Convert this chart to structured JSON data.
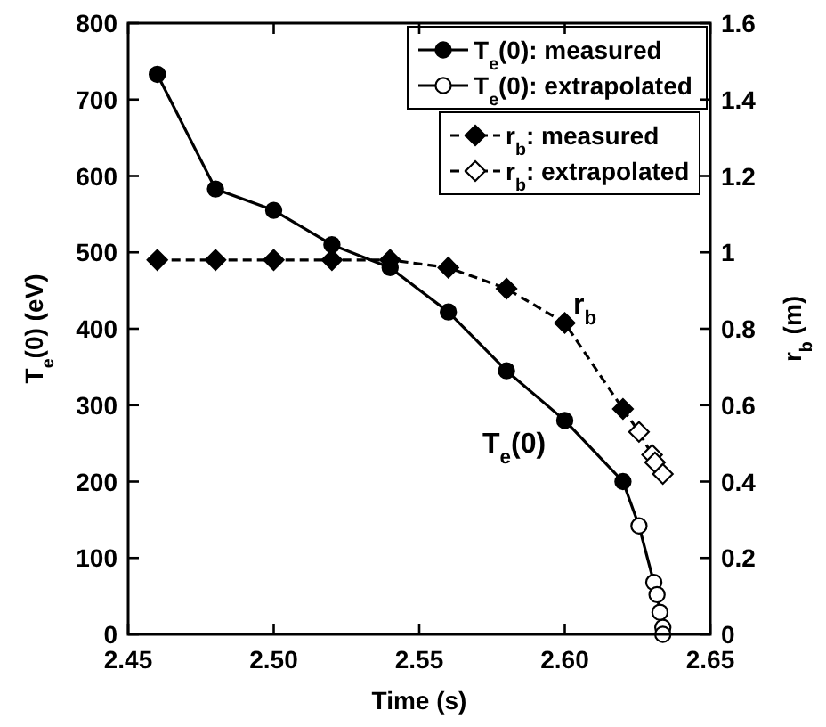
{
  "chart_data": {
    "type": "line",
    "xlabel": "Time (s)",
    "ylabel": "T$_{e}$(0) (eV)",
    "y2label": "r$_{b}$ (m)",
    "xlim": [
      2.45,
      2.65
    ],
    "xticks": [
      {
        "value": 2.45,
        "label": "2.45"
      },
      {
        "value": 2.5,
        "label": "2.50"
      },
      {
        "value": 2.55,
        "label": "2.55"
      },
      {
        "value": 2.6,
        "label": "2.60"
      },
      {
        "value": 2.65,
        "label": "2.65"
      }
    ],
    "ylim": [
      0,
      800
    ],
    "yticks": [
      0,
      100,
      200,
      300,
      400,
      500,
      600,
      700,
      800
    ],
    "y2lim": [
      0,
      1.6
    ],
    "y2ticks": [
      0,
      0.2,
      0.4,
      0.6,
      0.8,
      1,
      1.2,
      1.4,
      1.6
    ],
    "legend": "top right",
    "series": [
      {
        "name": "T$_{e}$(0): measured",
        "color": "#000000",
        "marker": "circle",
        "line_style": "solid",
        "x": [
          2.46,
          2.48,
          2.5,
          2.52,
          2.54,
          2.56,
          2.58,
          2.6,
          2.62
        ],
        "values": [
          733,
          583,
          555,
          510,
          480,
          422,
          345,
          280,
          200
        ]
      },
      {
        "name": "T$_{e}$(0): extrapolated",
        "color": "#ffffff",
        "marker": "circle",
        "line_style": "solid",
        "x": [
          2.62,
          2.6255,
          2.6306,
          2.6317,
          2.6327,
          2.6337,
          2.6337
        ],
        "values": [
          200,
          142,
          68,
          52,
          29,
          9,
          0
        ]
      },
      {
        "name": "r$_{b}$: measured",
        "color": "#000000",
        "marker": "diamond",
        "line_style": "dashed",
        "axis": "y2",
        "x": [
          2.46,
          2.48,
          2.5,
          2.52,
          2.54,
          2.56,
          2.58,
          2.6,
          2.62
        ],
        "values": [
          0.98,
          0.98,
          0.98,
          0.98,
          0.98,
          0.96,
          0.905,
          0.815,
          0.59
        ]
      },
      {
        "name": "r$_{b}$: extrapolated",
        "color": "#ffffff",
        "marker": "diamond",
        "line_style": "dashed",
        "axis": "y2",
        "x": [
          2.62,
          2.6255,
          2.63,
          2.631,
          2.6337
        ],
        "values": [
          0.59,
          0.53,
          0.47,
          0.45,
          0.42
        ]
      }
    ],
    "annotations": [
      "r$_{b}$",
      "T$_{e}$(0)"
    ]
  }
}
